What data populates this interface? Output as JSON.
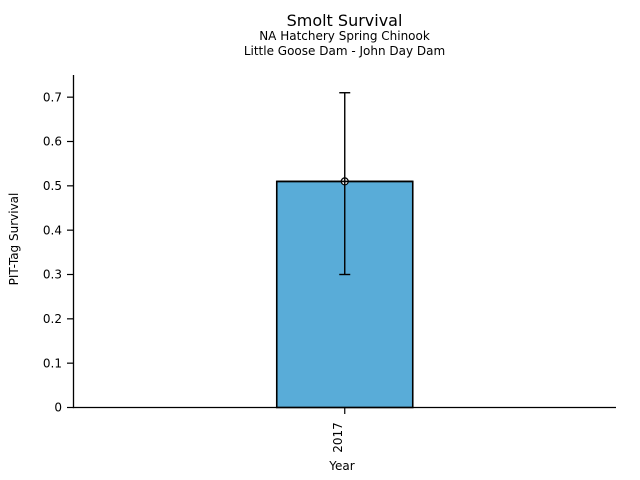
{
  "chart_data": {
    "type": "bar",
    "title": "Smolt Survival",
    "subtitle": [
      "NA Hatchery Spring Chinook",
      "Little Goose Dam - John Day Dam"
    ],
    "xlabel": "Year",
    "ylabel": "PIT-Tag Survival",
    "categories": [
      "2017"
    ],
    "values": [
      0.51
    ],
    "error_bars": [
      {
        "low": 0.3,
        "high": 0.71
      }
    ],
    "ylim": [
      0,
      0.75
    ],
    "yticks": [
      {
        "value": 0,
        "label": "0"
      },
      {
        "value": 0.1,
        "label": "0.1"
      },
      {
        "value": 0.2,
        "label": "0.2"
      },
      {
        "value": 0.3,
        "label": "0.3"
      },
      {
        "value": 0.4,
        "label": "0.4"
      },
      {
        "value": 0.5,
        "label": "0.5"
      },
      {
        "value": 0.6,
        "label": "0.6"
      },
      {
        "value": 0.7,
        "label": "0.7"
      }
    ],
    "xtick_rotation_deg": 90,
    "grid": false,
    "legend": false,
    "marker": "circle",
    "colors": {
      "bar_fill": "#59ACD8",
      "bar_edge": "#000000",
      "error": "#000000",
      "marker_fill": "#ffffff",
      "marker_stroke": "#000000",
      "axis": "#000000",
      "text": "#000000",
      "background": "#ffffff"
    }
  }
}
